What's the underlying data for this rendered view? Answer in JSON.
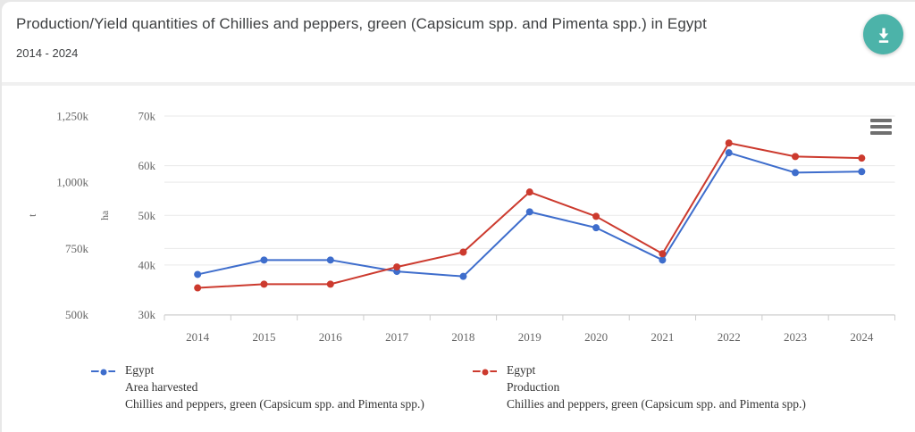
{
  "header": {
    "title": "Production/Yield quantities of Chillies and peppers, green (Capsicum spp. and Pimenta spp.) in Egypt",
    "subtitle": "2014 - 2024"
  },
  "icons": {
    "download": "download-icon",
    "context_menu": "hamburger-menu-icon"
  },
  "colors": {
    "accent_teal": "#4cb3a9",
    "series_area_harvested": "#3e6dcc",
    "series_production": "#cc3a2e",
    "gridline": "#e9e9e9",
    "axis_line": "#cccccc",
    "tick_text": "#666666",
    "legend_text": "#333333"
  },
  "chart_data": {
    "type": "line",
    "x": [
      2014,
      2015,
      2016,
      2017,
      2018,
      2019,
      2020,
      2021,
      2022,
      2023,
      2024
    ],
    "x_labels": [
      "2014",
      "2015",
      "2016",
      "2017",
      "2018",
      "2019",
      "2020",
      "2021",
      "2022",
      "2023",
      "2024"
    ],
    "grid": true,
    "legend_position": "bottom",
    "y_axes": [
      {
        "id": "t",
        "title": "t",
        "min": 500000,
        "max": 1250000,
        "tick_values": [
          500000,
          750000,
          1000000,
          1250000
        ],
        "tick_labels": [
          "500k",
          "750k",
          "1,000k",
          "1,250k"
        ]
      },
      {
        "id": "ha",
        "title": "ha",
        "min": 30000,
        "max": 70000,
        "tick_values": [
          30000,
          40000,
          50000,
          60000,
          70000
        ],
        "tick_labels": [
          "30k",
          "40k",
          "50k",
          "60k",
          "70k"
        ]
      }
    ],
    "series": [
      {
        "name": "Egypt Area harvested",
        "axis": "ha",
        "color": "#3e6dcc",
        "values": [
          38100,
          41000,
          41000,
          38700,
          37700,
          50700,
          47500,
          41000,
          62600,
          58600,
          58800
        ],
        "legend": [
          "Egypt",
          "Area harvested",
          "Chillies and peppers, green (Capsicum spp. and Pimenta spp.)"
        ]
      },
      {
        "name": "Egypt Production",
        "axis": "t",
        "color": "#cc3a2e",
        "values": [
          601000,
          615000,
          615000,
          680000,
          736000,
          963000,
          871000,
          730000,
          1148000,
          1097000,
          1091000
        ],
        "legend": [
          "Egypt",
          "Production",
          "Chillies and peppers, green (Capsicum spp. and Pimenta spp.)"
        ]
      }
    ]
  }
}
